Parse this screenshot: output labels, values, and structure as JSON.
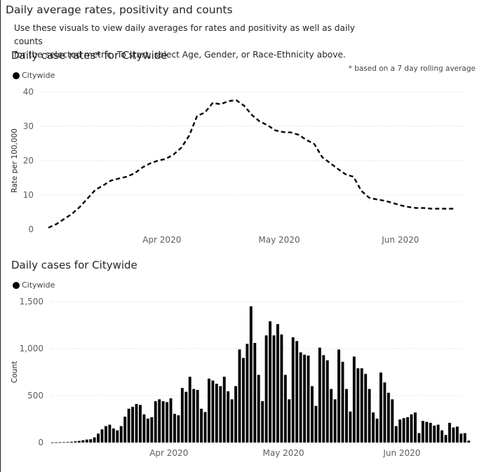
{
  "page": {
    "title": "Daily average rates, positivity and counts",
    "intro_line1": "Use these visuals to view daily averages for rates and positivity as well as daily counts",
    "intro_line2": "for the selected metric.  To start, select Age, Gender, or Race-Ethnicity above."
  },
  "colors": {
    "series": "#000000",
    "text": "#252423",
    "axis_text": "#605E5C",
    "grid": "#c8c8c8"
  },
  "chart_data": [
    {
      "type": "line",
      "title": "Daily case rates* for Citywide",
      "footnote": "* based on a 7 day rolling average",
      "legend": [
        "Citywide"
      ],
      "legend_position": "top-left",
      "ylabel": "Rate per 100,000",
      "ylim": [
        0,
        40
      ],
      "yticks": [
        0,
        10,
        20,
        30,
        40
      ],
      "ytick_labels": [
        "0",
        "10",
        "20",
        "30",
        "40"
      ],
      "xticks": [
        {
          "day": 31,
          "label": "Apr 2020"
        },
        {
          "day": 61,
          "label": "May 2020"
        },
        {
          "day": 92,
          "label": "Jun 2020"
        }
      ],
      "x_start_date": "2020-03-01",
      "grid": true,
      "line_style": "dashed",
      "series": [
        {
          "name": "Citywide",
          "x": [
            2,
            4,
            6,
            8,
            10,
            12,
            14,
            16,
            18,
            20,
            22,
            24,
            26,
            28,
            30,
            32,
            34,
            36,
            38,
            40,
            42,
            44,
            46,
            48,
            50,
            52,
            54,
            56,
            58,
            60,
            62,
            64,
            66,
            68,
            70,
            72,
            74,
            76,
            78,
            80,
            82,
            84,
            86,
            88,
            90,
            92,
            94,
            96,
            98,
            100,
            102,
            104,
            106
          ],
          "values": [
            0.5,
            1.5,
            3,
            4.5,
            6.5,
            9,
            11.5,
            12.8,
            14.2,
            14.8,
            15.3,
            16.3,
            18,
            19.2,
            20,
            20.5,
            21.8,
            23.8,
            27.3,
            33,
            34,
            36.8,
            36.4,
            37.3,
            37.6,
            36,
            33.3,
            31.4,
            30.3,
            28.8,
            28.3,
            28.2,
            27.5,
            26,
            24.8,
            21,
            19.3,
            17.6,
            16,
            15.3,
            11.2,
            9.2,
            8.7,
            8.3,
            7.7,
            7,
            6.5,
            6.2,
            6.2,
            6.0,
            6.0,
            6.0,
            6.0
          ]
        }
      ]
    },
    {
      "type": "bar",
      "title": "Daily cases for Citywide",
      "legend": [
        "Citywide"
      ],
      "legend_position": "top-left",
      "ylabel": "Count",
      "ylim": [
        0,
        1500
      ],
      "yticks": [
        0,
        500,
        1000,
        1500
      ],
      "ytick_labels": [
        "0",
        "500",
        "1,000",
        "1,500"
      ],
      "xticks": [
        {
          "day": 31,
          "label": "Apr 2020"
        },
        {
          "day": 61,
          "label": "May 2020"
        },
        {
          "day": 92,
          "label": "Jun 2020"
        }
      ],
      "x_start_date": "2020-03-01",
      "grid": true,
      "series": [
        {
          "name": "Citywide",
          "x_start_day": 0,
          "values": [
            2,
            2,
            3,
            4,
            6,
            8,
            12,
            18,
            25,
            32,
            35,
            55,
            95,
            140,
            175,
            190,
            150,
            130,
            175,
            275,
            360,
            380,
            410,
            400,
            300,
            255,
            270,
            440,
            460,
            440,
            430,
            470,
            305,
            290,
            580,
            540,
            700,
            570,
            560,
            360,
            325,
            680,
            660,
            625,
            600,
            700,
            545,
            460,
            600,
            990,
            900,
            1050,
            1450,
            1060,
            720,
            440,
            1140,
            1290,
            1140,
            1260,
            1150,
            720,
            460,
            1120,
            1080,
            960,
            935,
            925,
            600,
            390,
            1010,
            930,
            875,
            570,
            460,
            990,
            860,
            570,
            330,
            915,
            790,
            790,
            730,
            570,
            320,
            255,
            745,
            640,
            530,
            460,
            175,
            245,
            260,
            270,
            300,
            320,
            100,
            230,
            220,
            210,
            180,
            190,
            130,
            80,
            210,
            160,
            170,
            95,
            100,
            20
          ]
        }
      ]
    }
  ]
}
